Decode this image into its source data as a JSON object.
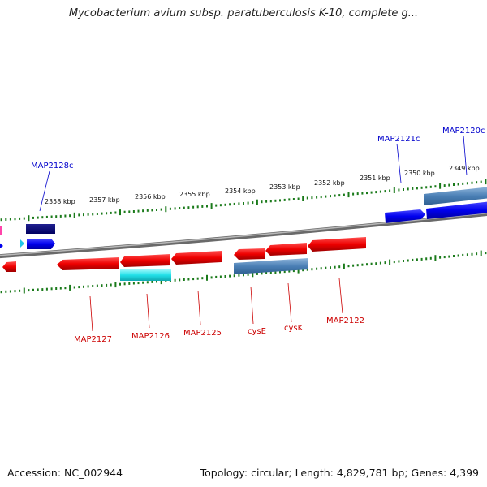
{
  "title": "Mycobacterium avium subsp. paratuberculosis K-10, complete g...",
  "footer": {
    "accession": "Accession: NC_002944",
    "summary": "Topology: circular; Length: 4,829,781 bp; Genes: 4,399"
  },
  "colors": {
    "forward_gene": "#0000ee",
    "forward_gene_dark": "#000080",
    "forward_rna": "#4a7fb5",
    "reverse_gene": "#ee0000",
    "reverse_rna": "#22e0e8",
    "backbone": "#888888",
    "tick": "#1a7a1a",
    "forward_label": "#0000cc",
    "reverse_label": "#cc0000"
  },
  "scale_ticks": [
    {
      "label": "2358 kbp"
    },
    {
      "label": "2357 kbp"
    },
    {
      "label": "2356 kbp"
    },
    {
      "label": "2355 kbp"
    },
    {
      "label": "2354 kbp"
    },
    {
      "label": "2353 kbp"
    },
    {
      "label": "2352 kbp"
    },
    {
      "label": "2351 kbp"
    },
    {
      "label": "2350 kbp"
    },
    {
      "label": "2349 kbp"
    }
  ],
  "forward_labels": [
    {
      "label": "MAP2128c"
    },
    {
      "label": "MAP2121c"
    },
    {
      "label": "MAP2120c"
    }
  ],
  "reverse_labels": [
    {
      "label": "MAP2127"
    },
    {
      "label": "MAP2126"
    },
    {
      "label": "MAP2125"
    },
    {
      "label": "cysE"
    },
    {
      "label": "cysK"
    },
    {
      "label": "MAP2122"
    }
  ]
}
